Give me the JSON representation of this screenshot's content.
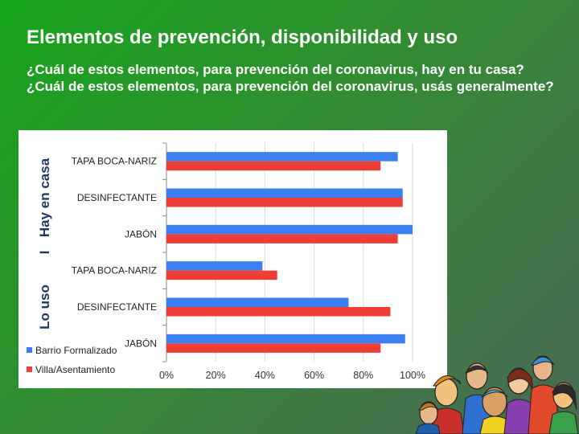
{
  "slide": {
    "title": "Elementos de prevención, disponibilidad y uso",
    "question_1": "¿Cuál de estos elementos, para prevención del coronavirus, hay en tu casa?",
    "question_2": "¿Cuál de estos elementos, para prevención del coronavirus, usás generalmente?"
  },
  "chart_data": {
    "type": "bar",
    "orientation": "horizontal",
    "groups": [
      {
        "label": "Hay en casa",
        "categories": [
          "TAPA BOCA-NARIZ",
          "DESINFECTANTE",
          "JABÓN"
        ]
      },
      {
        "label": "Lo uso",
        "categories": [
          "TAPA BOCA-NARIZ",
          "DESINFECTANTE",
          "JABÓN"
        ]
      }
    ],
    "group_separator": "I",
    "categories": [
      "TAPA BOCA-NARIZ",
      "DESINFECTANTE",
      "JABÓN",
      "TAPA BOCA-NARIZ",
      "DESINFECTANTE",
      "JABÓN"
    ],
    "series": [
      {
        "name": "Barrio Formalizado",
        "color": "#3b7ff0",
        "values": [
          94,
          96,
          100,
          39,
          74,
          97
        ]
      },
      {
        "name": "Villa/Asentamiento",
        "color": "#ef3c34",
        "values": [
          87,
          96,
          94,
          45,
          91,
          87
        ]
      }
    ],
    "xlim": [
      0,
      100
    ],
    "xticks": [
      "0%",
      "20%",
      "40%",
      "60%",
      "80%",
      "100%"
    ],
    "grid": true,
    "legend_position": "bottom-left"
  },
  "decor": {
    "illustration_icon": "group-of-people-illustration"
  }
}
